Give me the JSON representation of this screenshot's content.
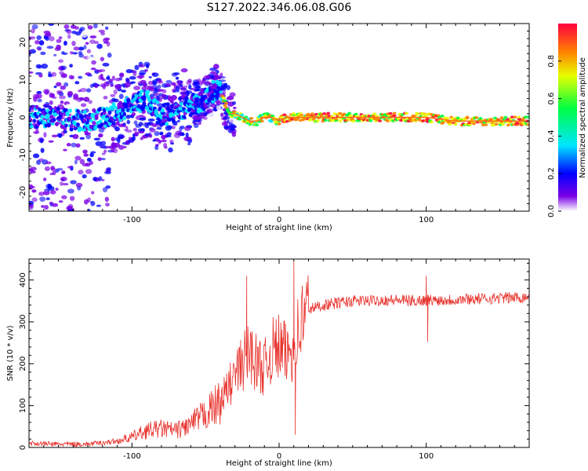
{
  "title": "S127.2022.346.06.08.G06",
  "chart_data": [
    {
      "type": "heatmap",
      "title": "S127.2022.346.06.08.G06",
      "xlabel": "Height of straight line (km)",
      "ylabel": "Frequency (Hz)",
      "xlim": [
        -170,
        170
      ],
      "ylim": [
        -25,
        25
      ],
      "xticks": [
        -100,
        0,
        100
      ],
      "yticks": [
        -20,
        -10,
        0,
        10,
        20
      ],
      "colorbar": {
        "label": "Normalized spectral amplitude",
        "range": [
          0.0,
          1.0
        ],
        "ticks": [
          "0.0",
          "0.2",
          "0.4",
          "0.6",
          "0.8"
        ],
        "colors": [
          "#ffffff",
          "#7a00e6",
          "#0000ff",
          "#00e6ff",
          "#00ff40",
          "#e6ff00",
          "#ff8000",
          "#ff0040"
        ]
      },
      "ridge": {
        "x": [
          -170,
          -150,
          -130,
          -110,
          -100,
          -90,
          -80,
          -70,
          -60,
          -50,
          -42,
          -37,
          -33,
          -30,
          -25,
          -20,
          -15,
          -10,
          -5,
          0,
          5,
          20,
          40,
          60,
          80,
          100,
          120,
          140,
          160,
          170
        ],
        "y": [
          0,
          0,
          -1,
          1,
          3,
          5,
          0,
          2,
          3,
          5,
          8,
          4,
          1,
          1,
          0,
          -1,
          -1,
          0,
          0,
          -1,
          0,
          0,
          0,
          0,
          0,
          0,
          -1,
          -1,
          -1,
          -1
        ]
      }
    },
    {
      "type": "line",
      "xlabel": "Height of straight line (km)",
      "ylabel": "SNR (10 * v/v)",
      "xlim": [
        -170,
        170
      ],
      "ylim": [
        0,
        450
      ],
      "xticks": [
        -100,
        0,
        100
      ],
      "yticks": [
        0,
        100,
        200,
        300,
        400
      ],
      "series": [
        {
          "name": "SNR",
          "color": "#e8322c",
          "x": [
            -170,
            -150,
            -130,
            -110,
            -100,
            -90,
            -80,
            -70,
            -60,
            -50,
            -40,
            -35,
            -30,
            -25,
            -20,
            -15,
            -10,
            -5,
            0,
            5,
            10,
            15,
            20,
            30,
            40,
            50,
            60,
            70,
            80,
            90,
            100,
            110,
            120,
            130,
            140,
            150,
            160,
            170
          ],
          "y": [
            10,
            8,
            8,
            15,
            25,
            40,
            45,
            40,
            55,
            80,
            110,
            140,
            170,
            200,
            230,
            200,
            190,
            230,
            240,
            220,
            240,
            300,
            330,
            340,
            345,
            350,
            350,
            352,
            352,
            350,
            352,
            352,
            353,
            355,
            355,
            357,
            358,
            360
          ],
          "spikes": [
            {
              "x": -22,
              "y": 410
            },
            {
              "x": 10,
              "y": 445
            },
            {
              "x": 11,
              "y": 30
            },
            {
              "x": 100,
              "y": 410
            },
            {
              "x": 101,
              "y": 252
            }
          ]
        }
      ]
    }
  ]
}
